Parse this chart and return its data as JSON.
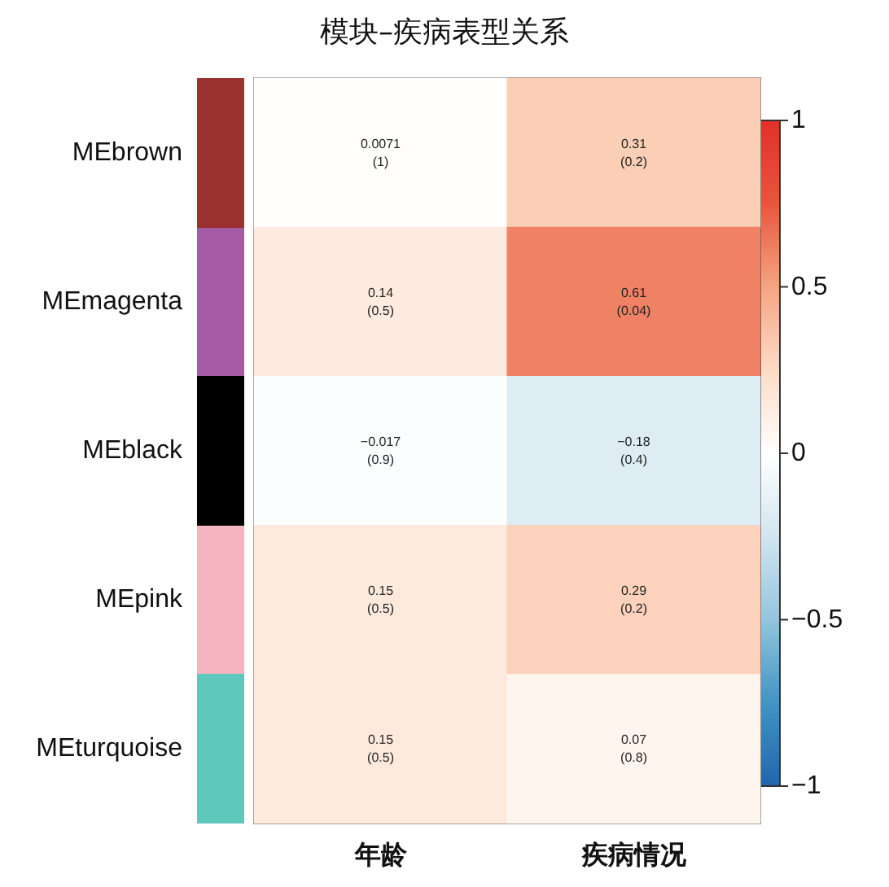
{
  "chart_data": {
    "type": "heatmap",
    "title": "模块–疾病表型关系",
    "categories": [
      "年龄",
      "疾病情况"
    ],
    "y_categories": [
      "MEbrown",
      "MEmagenta",
      "MEblack",
      "MEpink",
      "MEturquoise"
    ],
    "colors": [
      "#9a3330",
      "#a55aa4",
      "#000000",
      "#f4b4c0",
      "#5ec8bd"
    ],
    "cells": [
      [
        0.0071,
        0.31
      ],
      [
        0.14,
        0.61
      ],
      [
        -0.017,
        -0.18
      ],
      [
        0.15,
        0.29
      ],
      [
        0.15,
        0.07
      ]
    ],
    "cell_labels": [
      [
        "0.0071\n(1)",
        "0.31\n(0.2)"
      ],
      [
        "0.14\n(0.5)",
        "0.61\n(0.04)"
      ],
      [
        "−0.017\n(0.9)",
        "−0.18\n(0.4)"
      ],
      [
        "0.15\n(0.5)",
        "0.29\n(0.2)"
      ],
      [
        "0.15\n(0.5)",
        "0.07\n(0.8)"
      ]
    ],
    "clim": [
      -1,
      1
    ],
    "cticks": [
      {
        "value": -1,
        "label": "−1"
      },
      {
        "value": -0.5,
        "label": "−0.5"
      },
      0,
      0.5,
      1
    ]
  }
}
